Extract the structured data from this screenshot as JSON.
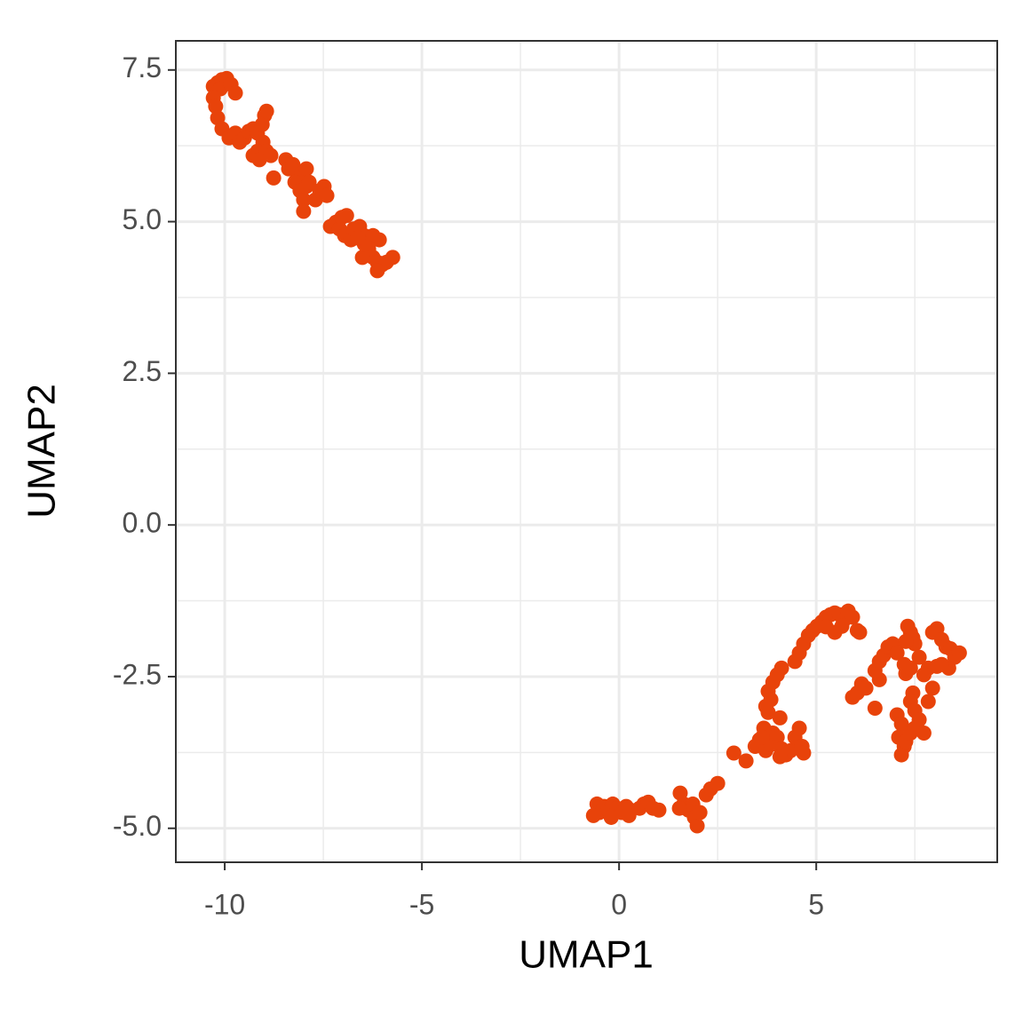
{
  "chart_data": {
    "type": "scatter",
    "x_label": "UMAP1",
    "y_label": "UMAP2",
    "color": "#e8430a",
    "xlim": [
      -11.24,
      9.59
    ],
    "ylim": [
      -5.56,
      7.98
    ],
    "xticks": [
      -10,
      -5,
      0,
      5
    ],
    "yticks": [
      {
        "value": -5,
        "label": "-5.0"
      },
      -2.5,
      {
        "value": 0,
        "label": "0.0"
      },
      2.5,
      {
        "value": 5,
        "label": "5.0"
      },
      7.5
    ],
    "minor_xticks": [
      -7.5,
      -2.5,
      2.5,
      7.5
    ],
    "minor_yticks": [
      -3.75,
      -1.25,
      1.25,
      3.75,
      6.25
    ],
    "grid": true,
    "x": [
      -10.29,
      -10.18,
      -10.07,
      -9.95,
      -10.11,
      -9.84,
      -9.73,
      -10.29,
      -10.23,
      -10.18,
      -10.07,
      -9.89,
      -9.73,
      -9.62,
      -9.5,
      -9.39,
      -9.28,
      -9.17,
      -9.05,
      -8.99,
      -8.94,
      -9.03,
      -9.17,
      -9.28,
      -9.12,
      -8.94,
      -8.83,
      -8.76,
      -8.45,
      -8.38,
      -8.27,
      -8.15,
      -8.04,
      -7.93,
      -8.22,
      -8.09,
      -8.0,
      -7.93,
      -7.86,
      -8.0,
      -7.7,
      -7.59,
      -7.48,
      -7.41,
      -7.32,
      -7.18,
      -7.09,
      -7.03,
      -6.91,
      -6.96,
      -6.8,
      -6.69,
      -6.58,
      -6.46,
      -6.73,
      -6.42,
      -6.35,
      -6.24,
      -6.13,
      -6.01,
      -5.9,
      -5.74,
      -6.13,
      -6.08,
      -6.24,
      -6.35,
      -6.51,
      -6.46,
      -6.62,
      -0.56,
      -0.5,
      -0.38,
      -0.27,
      -0.16,
      -0.05,
      0.07,
      0.18,
      0.29,
      0.52,
      0.63,
      0.74,
      0.86,
      1.01,
      -0.65,
      -0.2,
      0.25,
      1.55,
      1.64,
      1.76,
      1.87,
      1.91,
      1.98,
      2.05,
      2.21,
      2.32,
      2.5,
      1.53,
      2.91,
      3.22,
      3.45,
      3.56,
      3.72,
      3.85,
      4.01,
      4.12,
      4.23,
      4.35,
      4.46,
      4.57,
      4.64,
      4.68,
      3.9,
      4.08,
      3.67,
      3.63,
      3.72,
      3.78,
      3.9,
      4.01,
      4.12,
      4.08,
      3.78,
      3.85,
      4.46,
      4.57,
      4.68,
      4.8,
      4.91,
      5.02,
      5.14,
      5.25,
      5.36,
      5.47,
      5.59,
      5.7,
      5.81,
      5.92,
      6.04,
      6.1,
      5.47,
      5.25,
      5.65,
      5.92,
      6.04,
      6.15,
      6.26,
      6.49,
      6.6,
      6.49,
      6.6,
      6.71,
      6.82,
      6.94,
      7.05,
      7.23,
      7.27,
      7.39,
      7.32,
      7.39,
      7.45,
      7.5,
      7.27,
      7.45,
      7.39,
      7.5,
      7.61,
      7.05,
      7.16,
      7.09,
      7.23,
      7.16,
      7.27,
      7.39,
      7.5,
      7.73,
      7.84,
      7.95,
      8.06,
      7.95,
      8.06,
      8.18,
      8.29,
      8.4,
      8.51,
      8.63,
      8.36,
      8.18,
      7.84,
      7.61,
      7.73
    ],
    "values": [
      7.23,
      7.29,
      7.34,
      7.36,
      7.19,
      7.26,
      7.12,
      7.04,
      6.9,
      6.71,
      6.53,
      6.38,
      6.46,
      6.31,
      6.38,
      6.49,
      6.53,
      6.46,
      6.6,
      6.75,
      6.82,
      6.31,
      6.16,
      6.09,
      6.02,
      6.16,
      6.09,
      5.72,
      6.02,
      5.87,
      5.94,
      5.72,
      5.8,
      5.87,
      5.65,
      5.51,
      5.36,
      5.58,
      5.65,
      5.17,
      5.36,
      5.51,
      5.58,
      5.43,
      4.92,
      4.99,
      4.88,
      5.07,
      5.1,
      4.77,
      4.7,
      4.85,
      4.92,
      4.77,
      4.88,
      4.63,
      4.48,
      4.41,
      4.33,
      4.29,
      4.33,
      4.41,
      4.19,
      4.7,
      4.77,
      4.55,
      4.41,
      4.63,
      4.73,
      -4.6,
      -4.74,
      -4.64,
      -4.7,
      -4.6,
      -4.67,
      -4.74,
      -4.64,
      -4.7,
      -4.67,
      -4.6,
      -4.57,
      -4.67,
      -4.7,
      -4.79,
      -4.82,
      -4.79,
      -4.42,
      -4.6,
      -4.7,
      -4.6,
      -4.82,
      -4.96,
      -4.74,
      -4.45,
      -4.35,
      -4.26,
      -4.67,
      -3.76,
      -3.89,
      -3.65,
      -3.54,
      -3.72,
      -3.62,
      -3.5,
      -3.69,
      -3.79,
      -3.72,
      -3.5,
      -3.35,
      -3.65,
      -3.76,
      -3.43,
      -3.82,
      -3.35,
      -3.5,
      -2.99,
      -2.74,
      -2.59,
      -2.47,
      -2.36,
      -3.18,
      -3.09,
      -2.88,
      -2.25,
      -2.11,
      -1.96,
      -1.82,
      -1.74,
      -1.67,
      -1.6,
      -1.52,
      -1.48,
      -1.45,
      -1.48,
      -1.57,
      -1.42,
      -1.52,
      -1.74,
      -1.77,
      -1.77,
      -1.68,
      -1.67,
      -2.84,
      -2.77,
      -2.62,
      -2.69,
      -3.02,
      -2.55,
      -2.4,
      -2.25,
      -2.15,
      -2.01,
      -1.96,
      -2.11,
      -2.3,
      -2.45,
      -2.36,
      -1.67,
      -1.77,
      -1.86,
      -1.96,
      -1.92,
      -2.77,
      -2.91,
      -3.06,
      -3.21,
      -3.13,
      -3.28,
      -3.5,
      -3.65,
      -3.79,
      -3.57,
      -3.43,
      -3.35,
      -3.43,
      -2.91,
      -2.69,
      -2.33,
      -1.77,
      -1.71,
      -1.89,
      -2.01,
      -2.04,
      -2.18,
      -2.11,
      -2.36,
      -2.3,
      -2.36,
      -2.18,
      -2.47
    ]
  }
}
